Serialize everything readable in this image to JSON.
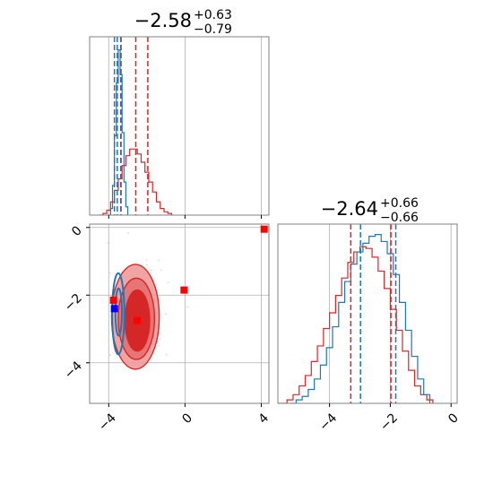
{
  "chart_data": {
    "type": "corner",
    "colors": {
      "red": "#d62728",
      "blue": "#1f77b4",
      "grid": "#b0b0b0",
      "frame": "#808080",
      "marker_blue": "#0000ff",
      "marker_red": "#ff0000"
    },
    "title_x": {
      "value": "−2.58",
      "plus": "+0.63",
      "minus": "−0.79"
    },
    "title_y": {
      "value": "−2.64",
      "plus": "+0.66",
      "minus": "−0.66"
    },
    "x_axis": {
      "range": [
        -5.0,
        4.4
      ],
      "ticks": [
        -4,
        0,
        4
      ],
      "tick_labels": [
        "−4",
        "0",
        "4"
      ]
    },
    "y_axis": {
      "range": [
        -5.2,
        0.1
      ],
      "ticks": [
        -4,
        -2,
        0
      ],
      "tick_labels": [
        "−4",
        "−2",
        "0"
      ]
    },
    "y_marginal_axis": {
      "range": [
        -5.7,
        0.2
      ],
      "ticks": [
        -4,
        -2,
        0
      ],
      "tick_labels": [
        "−4",
        "−2",
        "0"
      ]
    },
    "x_hist": {
      "red": {
        "bins": [
          [
            -4.5,
            0.0
          ],
          [
            -4.3,
            0.01
          ],
          [
            -4.1,
            0.03
          ],
          [
            -3.9,
            0.08
          ],
          [
            -3.7,
            0.15
          ],
          [
            -3.5,
            0.22
          ],
          [
            -3.3,
            0.3
          ],
          [
            -3.1,
            0.36
          ],
          [
            -2.9,
            0.4
          ],
          [
            -2.7,
            0.4
          ],
          [
            -2.5,
            0.37
          ],
          [
            -2.3,
            0.32
          ],
          [
            -2.1,
            0.26
          ],
          [
            -1.9,
            0.2
          ],
          [
            -1.7,
            0.14
          ],
          [
            -1.5,
            0.08
          ],
          [
            -1.3,
            0.04
          ],
          [
            -1.1,
            0.02
          ],
          [
            -0.9,
            0.01
          ],
          [
            -0.7,
            0.0
          ]
        ]
      },
      "blue": {
        "bins": [
          [
            -4.0,
            0.0
          ],
          [
            -3.9,
            0.04
          ],
          [
            -3.8,
            0.18
          ],
          [
            -3.7,
            0.48
          ],
          [
            -3.6,
            0.8
          ],
          [
            -3.5,
            1.0
          ],
          [
            -3.4,
            0.85
          ],
          [
            -3.3,
            0.5
          ],
          [
            -3.2,
            0.2
          ],
          [
            -3.1,
            0.05
          ],
          [
            -3.0,
            0.0
          ]
        ]
      },
      "red_lines": [
        -3.37,
        -2.58,
        -1.95
      ],
      "blue_lines": [
        -3.7,
        -3.55,
        -3.35
      ],
      "ymax": 1.08
    },
    "y_hist": {
      "red": {
        "bins": [
          [
            -5.7,
            0.0
          ],
          [
            -5.4,
            0.02
          ],
          [
            -5.2,
            0.05
          ],
          [
            -5.0,
            0.1
          ],
          [
            -4.8,
            0.16
          ],
          [
            -4.6,
            0.24
          ],
          [
            -4.4,
            0.33
          ],
          [
            -4.2,
            0.43
          ],
          [
            -4.0,
            0.52
          ],
          [
            -3.8,
            0.62
          ],
          [
            -3.6,
            0.72
          ],
          [
            -3.4,
            0.81
          ],
          [
            -3.2,
            0.87
          ],
          [
            -3.0,
            0.9
          ],
          [
            -2.8,
            0.89
          ],
          [
            -2.6,
            0.84
          ],
          [
            -2.4,
            0.76
          ],
          [
            -2.2,
            0.66
          ],
          [
            -2.0,
            0.54
          ],
          [
            -1.8,
            0.42
          ],
          [
            -1.6,
            0.3
          ],
          [
            -1.4,
            0.19
          ],
          [
            -1.2,
            0.1
          ],
          [
            -1.0,
            0.05
          ],
          [
            -0.8,
            0.02
          ],
          [
            -0.6,
            0.0
          ]
        ]
      },
      "blue": {
        "bins": [
          [
            -5.3,
            0.0
          ],
          [
            -5.1,
            0.02
          ],
          [
            -4.9,
            0.04
          ],
          [
            -4.7,
            0.08
          ],
          [
            -4.5,
            0.14
          ],
          [
            -4.3,
            0.22
          ],
          [
            -4.1,
            0.32
          ],
          [
            -3.9,
            0.44
          ],
          [
            -3.7,
            0.58
          ],
          [
            -3.5,
            0.7
          ],
          [
            -3.3,
            0.8
          ],
          [
            -3.1,
            0.87
          ],
          [
            -2.9,
            0.92
          ],
          [
            -2.7,
            0.96
          ],
          [
            -2.5,
            0.97
          ],
          [
            -2.3,
            0.93
          ],
          [
            -2.1,
            0.86
          ],
          [
            -1.9,
            0.74
          ],
          [
            -1.7,
            0.58
          ],
          [
            -1.5,
            0.42
          ],
          [
            -1.3,
            0.27
          ],
          [
            -1.1,
            0.14
          ],
          [
            -0.9,
            0.05
          ],
          [
            -0.7,
            0.0
          ]
        ]
      },
      "red_lines": [
        -3.3,
        -1.98
      ],
      "blue_lines": [
        -2.98,
        -1.82
      ],
      "ymax": 1.03
    },
    "scatter_2d": {
      "red_contours": [
        {
          "cx": -2.6,
          "cy": -2.64,
          "rx": 1.25,
          "ry": 1.55,
          "fill": "#ef9a9a",
          "opacity": 0.9
        },
        {
          "cx": -2.55,
          "cy": -2.7,
          "rx": 0.95,
          "ry": 1.2,
          "fill": "#e57373",
          "opacity": 0.95
        },
        {
          "cx": -2.5,
          "cy": -2.75,
          "rx": 0.65,
          "ry": 0.9,
          "fill": "#d62728",
          "opacity": 1.0
        }
      ],
      "blue_contours": [
        {
          "cx": -3.5,
          "cy": -2.55,
          "rx": 0.32,
          "ry": 1.2
        },
        {
          "cx": -3.48,
          "cy": -2.5,
          "rx": 0.17,
          "ry": 0.7
        }
      ],
      "markers_red": [
        [
          -3.75,
          -2.15
        ],
        [
          -2.5,
          -2.75
        ],
        [
          -0.05,
          -1.85
        ],
        [
          4.15,
          -0.05
        ]
      ],
      "markers_blue": [
        [
          -3.7,
          -2.4
        ]
      ]
    }
  }
}
